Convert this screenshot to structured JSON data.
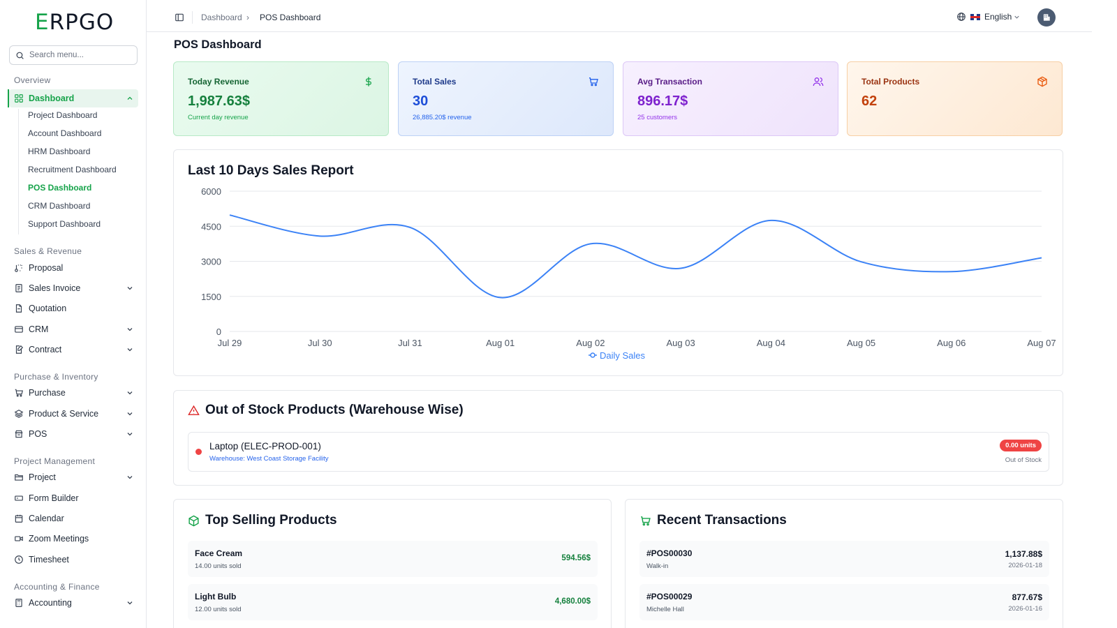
{
  "sidebar": {
    "logo": {
      "first": "E",
      "rest": "RPGO"
    },
    "search_placeholder": "Search menu...",
    "sections": {
      "overview": "Overview",
      "sales": "Sales & Revenue",
      "purchase": "Purchase & Inventory",
      "project": "Project Management",
      "accounting": "Accounting & Finance"
    },
    "dashboard_label": "Dashboard",
    "dashboard_subitems": [
      "Project Dashboard",
      "Account Dashboard",
      "HRM Dashboard",
      "Recruitment Dashboard",
      "POS Dashboard",
      "CRM Dashboard",
      "Support Dashboard"
    ],
    "items": {
      "proposal": "Proposal",
      "sales_invoice": "Sales Invoice",
      "quotation": "Quotation",
      "crm": "CRM",
      "contract": "Contract",
      "purchase": "Purchase",
      "product_service": "Product & Service",
      "pos": "POS",
      "project": "Project",
      "form_builder": "Form Builder",
      "calendar": "Calendar",
      "zoom": "Zoom Meetings",
      "timesheet": "Timesheet",
      "accounting": "Accounting"
    }
  },
  "header": {
    "breadcrumb": [
      "Dashboard",
      "POS Dashboard"
    ],
    "breadcrumb_separator": "›",
    "language": "English"
  },
  "page_title": "POS Dashboard",
  "stats": [
    {
      "label": "Today Revenue",
      "value": "1,987.63$",
      "sub": "Current day revenue",
      "icon": "dollar-icon"
    },
    {
      "label": "Total Sales",
      "value": "30",
      "sub": "26,885.20$ revenue",
      "icon": "cart-icon"
    },
    {
      "label": "Avg Transaction",
      "value": "896.17$",
      "sub": "25 customers",
      "icon": "users-icon"
    },
    {
      "label": "Total Products",
      "value": "62",
      "sub": "",
      "icon": "box-icon"
    }
  ],
  "chart_title": "Last 10 Days Sales Report",
  "chart_data": {
    "type": "line",
    "categories": [
      "Jul 29",
      "Jul 30",
      "Jul 31",
      "Aug 01",
      "Aug 02",
      "Aug 03",
      "Aug 04",
      "Aug 05",
      "Aug 06",
      "Aug 07"
    ],
    "series": [
      {
        "name": "Daily Sales",
        "values": [
          4980,
          4080,
          4450,
          1450,
          3750,
          2700,
          4750,
          2980,
          2560,
          3150
        ]
      }
    ],
    "yticks": [
      0,
      1500,
      3000,
      4500,
      6000
    ],
    "ylim": [
      0,
      6000
    ],
    "grid": true,
    "legend": "bottom",
    "color": "#3b82f6"
  },
  "out_of_stock": {
    "title": "Out of Stock Products (Warehouse Wise)",
    "items": [
      {
        "name": "Laptop (ELEC-PROD-001)",
        "warehouse": "Warehouse: West Coast Storage Facility",
        "badge": "0.00 units",
        "status": "Out of Stock"
      }
    ]
  },
  "top_selling": {
    "title": "Top Selling Products",
    "items": [
      {
        "name": "Face Cream",
        "units": "14.00 units sold",
        "amount": "594.56$"
      },
      {
        "name": "Light Bulb",
        "units": "12.00 units sold",
        "amount": "4,680.00$"
      }
    ]
  },
  "recent_transactions": {
    "title": "Recent Transactions",
    "items": [
      {
        "id": "#POS00030",
        "customer": "Walk-in",
        "amount": "1,137.88$",
        "date": "2026-01-18"
      },
      {
        "id": "#POS00029",
        "customer": "Michelle Hall",
        "amount": "877.67$",
        "date": "2026-01-16"
      }
    ]
  }
}
